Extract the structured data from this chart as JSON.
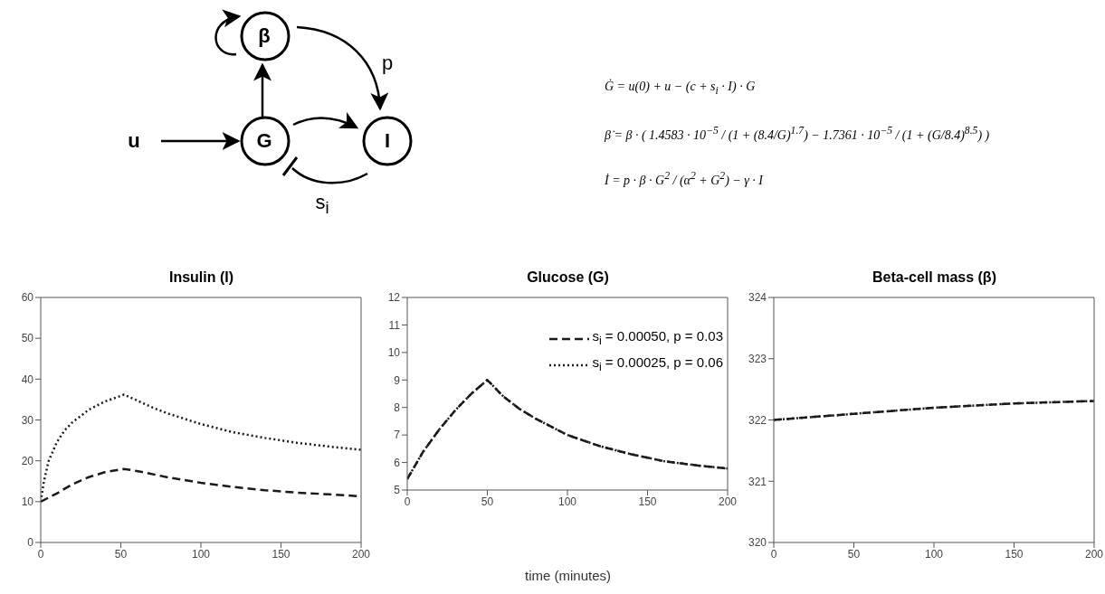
{
  "chart_data": [
    {
      "type": "other",
      "annotations": [
        "u",
        "β",
        "G",
        "I",
        "p",
        "s$_{i}$",
        "Ġ = u(0) + u − (c + s$_{i}$ · I) · G",
        "β̇ = β · ( 1.4583 · 10$^{−5}$ / (1 + (8.4/G)$^{1.7}$) − 1.7361 · 10$^{−5}$ / (1 + (G/8.4)$^{8.5}$) )",
        "İ = p · β · G$^{2}$ / (α$^{2}$ + G$^{2}$) − γ · I"
      ]
    },
    {
      "type": "line",
      "title": "Insulin (I)",
      "xlim": [
        0,
        200
      ],
      "xticks": [
        0,
        50,
        100,
        150,
        200
      ],
      "ylim": [
        0,
        60
      ],
      "yticks": [
        0,
        10,
        20,
        30,
        40,
        50,
        60
      ],
      "grid": false,
      "legend": false,
      "series": [
        {
          "color": "#1a1a1a",
          "line_style": "dashed",
          "x": [
            0,
            10,
            20,
            30,
            40,
            52,
            60,
            80,
            100,
            120,
            140,
            160,
            180,
            200
          ],
          "values": [
            10,
            12,
            14.3,
            16,
            17.2,
            18,
            17.5,
            15.9,
            14.6,
            13.6,
            12.8,
            12.2,
            11.8,
            11.3
          ]
        },
        {
          "color": "#1a1a1a",
          "line_style": "dotted",
          "x": [
            0,
            2,
            5,
            10,
            15,
            20,
            30,
            40,
            52,
            60,
            70,
            80,
            100,
            120,
            140,
            160,
            180,
            200
          ],
          "values": [
            10,
            15,
            20,
            24.5,
            27.5,
            29.5,
            32.5,
            34.5,
            36.2,
            34.8,
            33,
            31.5,
            29,
            27,
            25.6,
            24.4,
            23.5,
            22.7
          ]
        }
      ]
    },
    {
      "type": "line",
      "title": "Glucose (G)",
      "xlabel": "time (minutes)",
      "xlim": [
        0,
        200
      ],
      "xticks": [
        0,
        50,
        100,
        150,
        200
      ],
      "ylim": [
        5,
        12
      ],
      "yticks": [
        5,
        6,
        7,
        8,
        9,
        10,
        11,
        12
      ],
      "grid": false,
      "legend": "top right",
      "series": [
        {
          "name": "s$_{i}$ = 0.00050, p = 0.03",
          "color": "#1a1a1a",
          "line_style": "dashed",
          "x": [
            0,
            10,
            20,
            30,
            40,
            50,
            60,
            70,
            80,
            100,
            120,
            140,
            160,
            180,
            200
          ],
          "values": [
            5.4,
            6.4,
            7.2,
            7.9,
            8.5,
            9.0,
            8.4,
            7.95,
            7.6,
            7.0,
            6.6,
            6.3,
            6.05,
            5.9,
            5.78
          ]
        },
        {
          "name": "s$_{i}$ = 0.00025, p = 0.06",
          "color": "#1a1a1a",
          "line_style": "dotted",
          "x": [
            0,
            10,
            20,
            30,
            40,
            50,
            60,
            70,
            80,
            100,
            120,
            140,
            160,
            180,
            200
          ],
          "values": [
            5.4,
            6.4,
            7.2,
            7.9,
            8.5,
            9.0,
            8.4,
            7.95,
            7.6,
            7.0,
            6.6,
            6.3,
            6.05,
            5.9,
            5.78
          ]
        }
      ]
    },
    {
      "type": "line",
      "title": "Beta-cell mass (β)",
      "xlim": [
        0,
        200
      ],
      "xticks": [
        0,
        50,
        100,
        150,
        200
      ],
      "ylim": [
        320,
        324
      ],
      "yticks": [
        320,
        321,
        322,
        323,
        324
      ],
      "grid": false,
      "legend": false,
      "series": [
        {
          "color": "#1a1a1a",
          "line_style": "dashed",
          "x": [
            0,
            50,
            100,
            150,
            200
          ],
          "values": [
            322,
            322.1,
            322.2,
            322.27,
            322.31
          ]
        },
        {
          "color": "#1a1a1a",
          "line_style": "dotted",
          "x": [
            0,
            50,
            100,
            150,
            200
          ],
          "values": [
            322,
            322.1,
            322.2,
            322.27,
            322.31
          ]
        }
      ]
    }
  ]
}
